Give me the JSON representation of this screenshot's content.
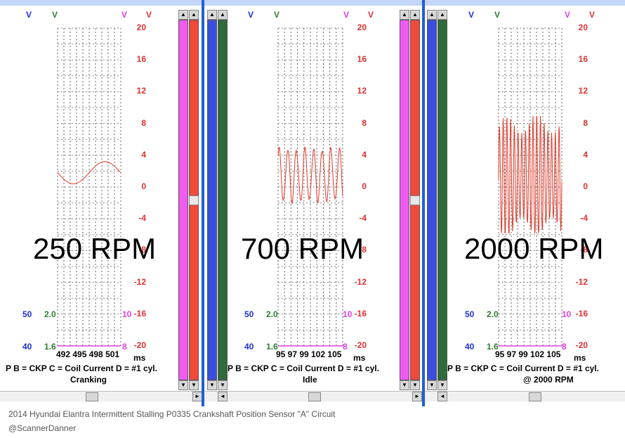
{
  "panels": [
    {
      "id": "cranking",
      "rpm_label": "250 RPM",
      "header_labels": [
        "V",
        "V",
        "V",
        "V"
      ],
      "y_ticks": [
        "20",
        "16",
        "12",
        "8",
        "4",
        "0",
        "-4",
        "-8",
        "-12",
        "-16",
        "-20"
      ],
      "left_scale_blue": [
        "50",
        "40"
      ],
      "left_scale_green": [
        "2.0",
        "1.6"
      ],
      "right_scale_magenta": [
        "10",
        "8"
      ],
      "x_ticks": "492 495 498 501",
      "x_unit": "ms",
      "legend": "P   B = CKP   C = Coil Current   D = #1 cyl.",
      "subtitle": "Cranking",
      "waveform": "slow"
    },
    {
      "id": "idle",
      "rpm_label": "700 RPM",
      "header_labels": [
        "V",
        "V",
        "V",
        "V"
      ],
      "y_ticks": [
        "20",
        "16",
        "12",
        "8",
        "4",
        "0",
        "-4",
        "-8",
        "-12",
        "-16",
        "-20"
      ],
      "left_scale_blue": [
        "50",
        "40"
      ],
      "left_scale_green": [
        "2.0",
        "1.6"
      ],
      "right_scale_magenta": [
        "10",
        "8"
      ],
      "x_ticks": "95 97 99   102 105",
      "x_unit": "ms",
      "legend": "P   B = CKP   C = Coil Current   D = #1 cyl.",
      "subtitle": "Idle",
      "waveform": "medium"
    },
    {
      "id": "2000rpm",
      "rpm_label": "2000 RPM",
      "header_labels": [
        "V",
        "V",
        "V",
        "V"
      ],
      "y_ticks": [
        "20",
        "16",
        "12",
        "8",
        "4",
        "0",
        "-4",
        "-8",
        "-12",
        "-16",
        "-20"
      ],
      "left_scale_blue": [
        "50",
        "40"
      ],
      "left_scale_green": [
        "2.0",
        "1.6"
      ],
      "right_scale_magenta": [
        "10",
        "8"
      ],
      "x_ticks": "95 97 99   102 105",
      "x_unit": "ms",
      "legend": "P   B = CKP   C = Coil Current   D = #1 cyl.",
      "subtitle": "@ 2000 RPM",
      "waveform": "fast"
    }
  ],
  "colors": {
    "blue": "#1c2fd6",
    "green": "#2e7d2e",
    "magenta": "#e040e0",
    "red": "#e13030",
    "trace": "#e03a2a",
    "bar_blue": "#3a4fe0",
    "bar_green": "#2f6a3a",
    "bar_magenta": "#f05af0",
    "bar_red": "#f04a3a"
  },
  "caption": {
    "line1": "2014 Hyundai Elantra Intermittent Stalling P0335 Crankshaft Position Sensor \"A\" Circuit",
    "line2": "@ScannerDanner"
  }
}
